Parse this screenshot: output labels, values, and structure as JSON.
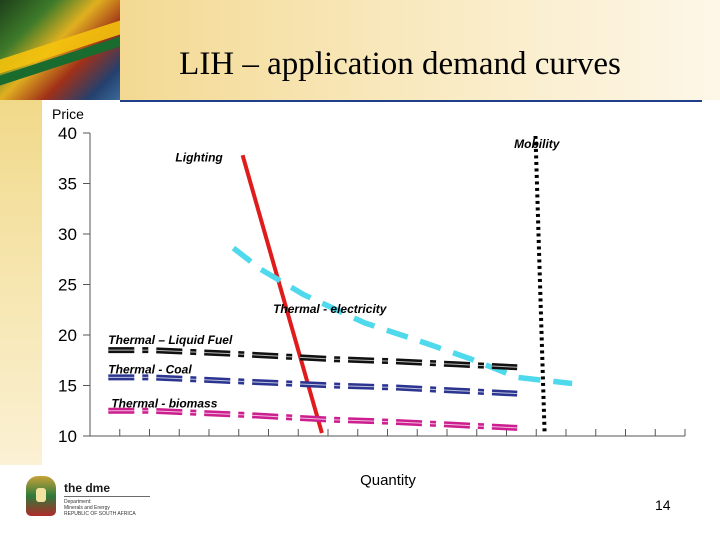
{
  "slide": {
    "title": "LIH – application demand curves",
    "page_number": "14"
  },
  "branding": {
    "logo_name": "the dme",
    "logo_sub": [
      "Department:",
      "Minerals and Energy",
      "REPUBLIC OF SOUTH AFRICA"
    ],
    "logo_icon": "coat-of-arms-icon"
  },
  "chart_data": {
    "type": "line",
    "ylabel": "Price",
    "xlabel": "Quantity",
    "ylim": [
      10,
      40
    ],
    "yticks": [
      "40",
      "35",
      "30",
      "25",
      "20",
      "15",
      "10"
    ],
    "xlim": [
      0,
      19.5
    ],
    "x_tick_count": 20,
    "grid": false,
    "series": [
      {
        "name": "Lighting",
        "color": "#e01b1b",
        "style": "solid-thick",
        "points": [
          [
            5,
            37.8
          ],
          [
            7.6,
            10.3
          ]
        ]
      },
      {
        "name": "Thermal - electricity",
        "color": "#4fd9ec",
        "style": "dashed-thick",
        "points": [
          [
            4.7,
            28.6
          ],
          [
            5.6,
            26.5
          ],
          [
            7,
            24
          ],
          [
            9,
            21.2
          ],
          [
            11,
            19.2
          ],
          [
            12.5,
            17.6
          ],
          [
            14,
            15.8
          ],
          [
            15.8,
            15.2
          ]
        ]
      },
      {
        "name": "Mobility",
        "color": "#000000",
        "style": "dotted-thick",
        "points": [
          [
            14.6,
            39.7
          ],
          [
            14.9,
            10.3
          ]
        ]
      },
      {
        "name": "Thermal – Liquid Fuel",
        "color": "#111111",
        "style": "dashed-band",
        "points": [
          [
            0.6,
            18.5
          ],
          [
            2,
            18.5
          ],
          [
            5,
            18.1
          ],
          [
            8,
            17.6
          ],
          [
            10,
            17.4
          ],
          [
            12,
            17.1
          ],
          [
            14,
            16.8
          ]
        ]
      },
      {
        "name": "Thermal - Coal",
        "color": "#2b3590",
        "style": "dashed-band",
        "points": [
          [
            0.6,
            15.8
          ],
          [
            2,
            15.8
          ],
          [
            5,
            15.4
          ],
          [
            8,
            15.0
          ],
          [
            10,
            14.8
          ],
          [
            12,
            14.5
          ],
          [
            14,
            14.2
          ]
        ]
      },
      {
        "name": "Thermal - biomass",
        "color": "#cc1e8e",
        "style": "dashed-band",
        "points": [
          [
            0.6,
            12.5
          ],
          [
            2,
            12.5
          ],
          [
            5,
            12.1
          ],
          [
            8,
            11.6
          ],
          [
            10,
            11.4
          ],
          [
            12,
            11.1
          ],
          [
            14,
            10.8
          ]
        ]
      }
    ],
    "annotations": [
      {
        "text": "Lighting",
        "x": 2.8,
        "y": 37.2
      },
      {
        "text": "Mobility",
        "x": 13.9,
        "y": 38.5
      },
      {
        "text": "Thermal - electricity",
        "x": 6.0,
        "y": 22.2
      },
      {
        "text": "Thermal – Liquid Fuel",
        "x": 0.6,
        "y": 19.1
      },
      {
        "text": "Thermal - Coal",
        "x": 0.6,
        "y": 16.2
      },
      {
        "text": "Thermal - biomass",
        "x": 0.7,
        "y": 12.8
      }
    ]
  }
}
